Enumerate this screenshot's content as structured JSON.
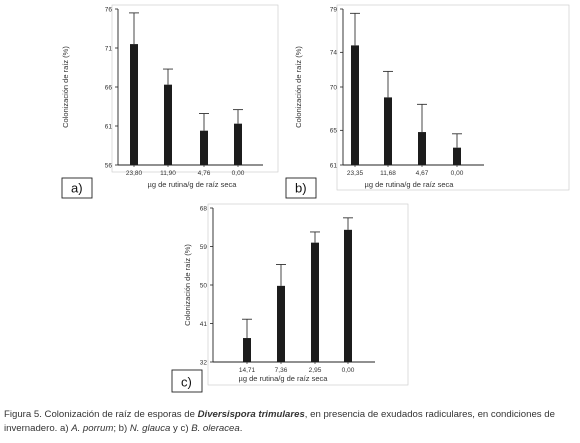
{
  "chart_data": [
    {
      "type": "bar",
      "panel_label": "a)",
      "categories": [
        "23,80",
        "11,90",
        "4,76",
        "0,00"
      ],
      "values": [
        71.5,
        66.3,
        60.4,
        61.3
      ],
      "errors": [
        4.0,
        2.0,
        2.2,
        1.8
      ],
      "xlabel": "µg de rutina/g de raíz seca",
      "ylabel": "Colonización de raíz (%)",
      "ylim": [
        56,
        76
      ],
      "yticks": [
        "56",
        "61",
        "66",
        "71",
        "76"
      ],
      "colors": {
        "bar": "#1c1c1c",
        "error": "#333333"
      }
    },
    {
      "type": "bar",
      "panel_label": "b)",
      "categories": [
        "23,35",
        "11,68",
        "4,67",
        "0,00"
      ],
      "values": [
        74.8,
        68.8,
        64.8,
        63.0
      ],
      "errors": [
        3.7,
        3.0,
        3.2,
        1.6
      ],
      "xlabel": "µg de rutina/g de raíz seca",
      "ylabel": "Colonización de raíz (%)",
      "ylim": [
        61,
        79
      ],
      "yticks": [
        "61",
        "65",
        "70",
        "74",
        "79"
      ],
      "colors": {
        "bar": "#1c1c1c",
        "error": "#333333"
      }
    },
    {
      "type": "bar",
      "panel_label": "c)",
      "categories": [
        "14,71",
        "7,36",
        "2,95",
        "0,00"
      ],
      "values": [
        37.6,
        49.8,
        59.9,
        62.9
      ],
      "errors": [
        4.4,
        5.0,
        2.5,
        2.8
      ],
      "xlabel": "µg de rutina/g de raíz seca",
      "ylabel": "Colonización de raíz (%)",
      "ylim": [
        32,
        68
      ],
      "yticks": [
        "32",
        "41",
        "50",
        "59",
        "68"
      ],
      "colors": {
        "bar": "#1c1c1c",
        "error": "#333333"
      }
    }
  ],
  "caption": {
    "part1": "Figura 5. Colonización de raíz de esporas de ",
    "species": "Diversispora trimulares",
    "part2": ", en presencia de exudados radiculares, en condiciones de invernadero. a) ",
    "plant_a": "A. porrum",
    "part3": "; b) ",
    "plant_b": "N. glauca",
    "part4": " y c) ",
    "plant_c": "B. oleracea",
    "part5": "."
  }
}
